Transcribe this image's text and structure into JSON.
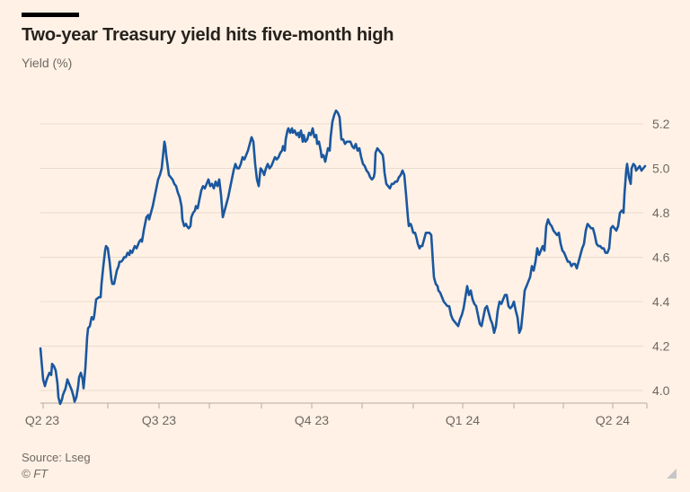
{
  "header": {
    "title": "Two-year Treasury yield hits five-month high",
    "subtitle": "Yield (%)"
  },
  "footer": {
    "source": "Source: Lseg",
    "copyright": "© FT"
  },
  "colors": {
    "background": "#FFF1E5",
    "accent_line": "#1A579F",
    "grid": "#E9DCCD",
    "axis": "#B5ACA2",
    "text_muted": "#6E6862",
    "title_text": "#26211D",
    "headline_bar": "#000000",
    "resize_handle": "#C6C6C6"
  },
  "chart_data": {
    "type": "line",
    "title": "Two-year Treasury yield hits five-month high",
    "ylabel": "Yield (%)",
    "series_name": "Two-year US Treasury yield",
    "ylim": [
      3.9,
      5.3
    ],
    "y_ticks": [
      5.2,
      5.0,
      4.8,
      4.6,
      4.4,
      4.2,
      4.0
    ],
    "x_tick_labels": [
      "Q2 23",
      "Q3 23",
      "Q4 23",
      "Q1 24",
      "Q2 24"
    ],
    "grid": "horizontal-only",
    "legend": "none",
    "x_unit_note": "x is horizontal plot position in px; date ≈ 2023-04-01 + (x-11)/1.832 days (axis spans ~19 Apr 2023 to ~21 Apr 2024, monthly ticks, quarterly labels)",
    "x_calibration": {
      "2023-07-01": 179,
      "2023-10-01": 347,
      "2024-01-01": 515,
      "2024-04-01": 682
    },
    "points": [
      [
        45,
        4.19
      ],
      [
        48,
        4.05
      ],
      [
        50,
        4.02
      ],
      [
        52,
        4.05
      ],
      [
        55,
        4.08
      ],
      [
        57,
        4.07
      ],
      [
        58,
        4.12
      ],
      [
        60,
        4.11
      ],
      [
        62,
        4.09
      ],
      [
        64,
        4.03
      ],
      [
        65,
        3.97
      ],
      [
        67,
        3.94
      ],
      [
        69,
        3.96
      ],
      [
        70,
        3.98
      ],
      [
        72,
        4.0
      ],
      [
        73,
        4.01
      ],
      [
        75,
        4.05
      ],
      [
        77,
        4.03
      ],
      [
        79,
        4.01
      ],
      [
        80,
        4.0
      ],
      [
        82,
        3.97
      ],
      [
        83,
        3.95
      ],
      [
        85,
        3.97
      ],
      [
        87,
        4.02
      ],
      [
        88,
        4.06
      ],
      [
        90,
        4.08
      ],
      [
        92,
        4.05
      ],
      [
        93,
        4.01
      ],
      [
        95,
        4.1
      ],
      [
        97,
        4.24
      ],
      [
        98,
        4.28
      ],
      [
        100,
        4.29
      ],
      [
        102,
        4.33
      ],
      [
        104,
        4.32
      ],
      [
        105,
        4.34
      ],
      [
        107,
        4.41
      ],
      [
        110,
        4.42
      ],
      [
        112,
        4.42
      ],
      [
        113,
        4.48
      ],
      [
        115,
        4.56
      ],
      [
        117,
        4.63
      ],
      [
        118,
        4.65
      ],
      [
        120,
        4.64
      ],
      [
        122,
        4.58
      ],
      [
        124,
        4.5
      ],
      [
        125,
        4.48
      ],
      [
        127,
        4.48
      ],
      [
        128,
        4.5
      ],
      [
        130,
        4.54
      ],
      [
        132,
        4.56
      ],
      [
        133,
        4.58
      ],
      [
        135,
        4.58
      ],
      [
        137,
        4.59
      ],
      [
        138,
        4.6
      ],
      [
        140,
        4.6
      ],
      [
        142,
        4.62
      ],
      [
        144,
        4.61
      ],
      [
        145,
        4.63
      ],
      [
        147,
        4.62
      ],
      [
        148,
        4.63
      ],
      [
        150,
        4.65
      ],
      [
        152,
        4.64
      ],
      [
        153,
        4.65
      ],
      [
        155,
        4.67
      ],
      [
        157,
        4.68
      ],
      [
        158,
        4.67
      ],
      [
        160,
        4.72
      ],
      [
        162,
        4.76
      ],
      [
        163,
        4.78
      ],
      [
        165,
        4.79
      ],
      [
        166,
        4.77
      ],
      [
        168,
        4.8
      ],
      [
        170,
        4.83
      ],
      [
        172,
        4.87
      ],
      [
        174,
        4.91
      ],
      [
        176,
        4.95
      ],
      [
        178,
        4.97
      ],
      [
        180,
        5.0
      ],
      [
        183,
        5.12
      ],
      [
        184,
        5.1
      ],
      [
        185,
        5.06
      ],
      [
        187,
        5.0
      ],
      [
        188,
        4.97
      ],
      [
        190,
        4.96
      ],
      [
        192,
        4.95
      ],
      [
        194,
        4.93
      ],
      [
        196,
        4.92
      ],
      [
        198,
        4.89
      ],
      [
        200,
        4.87
      ],
      [
        202,
        4.83
      ],
      [
        203,
        4.77
      ],
      [
        205,
        4.74
      ],
      [
        207,
        4.75
      ],
      [
        208,
        4.74
      ],
      [
        210,
        4.73
      ],
      [
        212,
        4.74
      ],
      [
        213,
        4.78
      ],
      [
        215,
        4.8
      ],
      [
        217,
        4.81
      ],
      [
        218,
        4.83
      ],
      [
        220,
        4.82
      ],
      [
        222,
        4.86
      ],
      [
        224,
        4.9
      ],
      [
        226,
        4.92
      ],
      [
        228,
        4.91
      ],
      [
        230,
        4.93
      ],
      [
        232,
        4.95
      ],
      [
        234,
        4.92
      ],
      [
        236,
        4.93
      ],
      [
        238,
        4.91
      ],
      [
        240,
        4.94
      ],
      [
        242,
        4.92
      ],
      [
        244,
        4.95
      ],
      [
        246,
        4.88
      ],
      [
        248,
        4.78
      ],
      [
        250,
        4.81
      ],
      [
        252,
        4.84
      ],
      [
        254,
        4.87
      ],
      [
        256,
        4.91
      ],
      [
        258,
        4.95
      ],
      [
        260,
        4.99
      ],
      [
        262,
        5.02
      ],
      [
        264,
        5.0
      ],
      [
        266,
        5.0
      ],
      [
        268,
        5.02
      ],
      [
        270,
        5.05
      ],
      [
        272,
        5.04
      ],
      [
        274,
        5.06
      ],
      [
        276,
        5.08
      ],
      [
        278,
        5.11
      ],
      [
        280,
        5.14
      ],
      [
        282,
        5.12
      ],
      [
        284,
        5.02
      ],
      [
        286,
        4.95
      ],
      [
        288,
        4.92
      ],
      [
        290,
        5.0
      ],
      [
        292,
        4.99
      ],
      [
        294,
        4.97
      ],
      [
        296,
        5.0
      ],
      [
        298,
        5.02
      ],
      [
        300,
        5.0
      ],
      [
        302,
        5.01
      ],
      [
        304,
        5.03
      ],
      [
        306,
        5.05
      ],
      [
        308,
        5.04
      ],
      [
        310,
        5.05
      ],
      [
        312,
        5.07
      ],
      [
        314,
        5.08
      ],
      [
        315,
        5.1
      ],
      [
        317,
        5.08
      ],
      [
        318,
        5.13
      ],
      [
        320,
        5.17
      ],
      [
        321,
        5.18
      ],
      [
        323,
        5.16
      ],
      [
        325,
        5.18
      ],
      [
        326,
        5.16
      ],
      [
        328,
        5.17
      ],
      [
        330,
        5.15
      ],
      [
        332,
        5.16
      ],
      [
        333,
        5.14
      ],
      [
        335,
        5.17
      ],
      [
        337,
        5.12
      ],
      [
        338,
        5.15
      ],
      [
        340,
        5.12
      ],
      [
        342,
        5.13
      ],
      [
        344,
        5.16
      ],
      [
        346,
        5.15
      ],
      [
        348,
        5.18
      ],
      [
        350,
        5.14
      ],
      [
        352,
        5.15
      ],
      [
        353,
        5.11
      ],
      [
        355,
        5.12
      ],
      [
        357,
        5.08
      ],
      [
        358,
        5.05
      ],
      [
        360,
        5.06
      ],
      [
        362,
        5.03
      ],
      [
        363,
        5.05
      ],
      [
        365,
        5.09
      ],
      [
        367,
        5.08
      ],
      [
        368,
        5.14
      ],
      [
        370,
        5.21
      ],
      [
        372,
        5.24
      ],
      [
        374,
        5.26
      ],
      [
        376,
        5.25
      ],
      [
        378,
        5.23
      ],
      [
        380,
        5.13
      ],
      [
        382,
        5.13
      ],
      [
        384,
        5.11
      ],
      [
        386,
        5.12
      ],
      [
        388,
        5.12
      ],
      [
        390,
        5.12
      ],
      [
        392,
        5.1
      ],
      [
        394,
        5.09
      ],
      [
        396,
        5.11
      ],
      [
        398,
        5.08
      ],
      [
        400,
        5.09
      ],
      [
        402,
        5.05
      ],
      [
        404,
        5.02
      ],
      [
        406,
        5.01
      ],
      [
        408,
        4.99
      ],
      [
        410,
        4.98
      ],
      [
        412,
        4.96
      ],
      [
        414,
        4.95
      ],
      [
        416,
        4.96
      ],
      [
        417,
        4.98
      ],
      [
        418,
        5.07
      ],
      [
        420,
        5.09
      ],
      [
        422,
        5.08
      ],
      [
        424,
        5.07
      ],
      [
        426,
        5.06
      ],
      [
        427,
        5.03
      ],
      [
        428,
        4.98
      ],
      [
        430,
        4.93
      ],
      [
        432,
        4.92
      ],
      [
        434,
        4.91
      ],
      [
        436,
        4.93
      ],
      [
        438,
        4.93
      ],
      [
        440,
        4.94
      ],
      [
        442,
        4.94
      ],
      [
        444,
        4.96
      ],
      [
        446,
        4.97
      ],
      [
        448,
        4.99
      ],
      [
        450,
        4.97
      ],
      [
        452,
        4.88
      ],
      [
        454,
        4.78
      ],
      [
        455,
        4.74
      ],
      [
        457,
        4.75
      ],
      [
        458,
        4.74
      ],
      [
        460,
        4.71
      ],
      [
        462,
        4.71
      ],
      [
        464,
        4.68
      ],
      [
        465,
        4.66
      ],
      [
        467,
        4.64
      ],
      [
        468,
        4.65
      ],
      [
        470,
        4.65
      ],
      [
        472,
        4.68
      ],
      [
        474,
        4.71
      ],
      [
        476,
        4.71
      ],
      [
        478,
        4.71
      ],
      [
        480,
        4.7
      ],
      [
        482,
        4.57
      ],
      [
        483,
        4.51
      ],
      [
        485,
        4.48
      ],
      [
        487,
        4.47
      ],
      [
        488,
        4.45
      ],
      [
        490,
        4.44
      ],
      [
        492,
        4.42
      ],
      [
        494,
        4.4
      ],
      [
        496,
        4.39
      ],
      [
        498,
        4.38
      ],
      [
        500,
        4.38
      ],
      [
        502,
        4.34
      ],
      [
        504,
        4.32
      ],
      [
        506,
        4.31
      ],
      [
        508,
        4.3
      ],
      [
        510,
        4.29
      ],
      [
        512,
        4.32
      ],
      [
        514,
        4.34
      ],
      [
        516,
        4.37
      ],
      [
        518,
        4.42
      ],
      [
        520,
        4.47
      ],
      [
        522,
        4.43
      ],
      [
        524,
        4.45
      ],
      [
        526,
        4.41
      ],
      [
        528,
        4.39
      ],
      [
        530,
        4.38
      ],
      [
        532,
        4.34
      ],
      [
        534,
        4.3
      ],
      [
        536,
        4.29
      ],
      [
        538,
        4.33
      ],
      [
        540,
        4.37
      ],
      [
        542,
        4.38
      ],
      [
        544,
        4.35
      ],
      [
        546,
        4.32
      ],
      [
        548,
        4.3
      ],
      [
        550,
        4.26
      ],
      [
        552,
        4.29
      ],
      [
        554,
        4.36
      ],
      [
        556,
        4.4
      ],
      [
        558,
        4.39
      ],
      [
        560,
        4.41
      ],
      [
        562,
        4.43
      ],
      [
        564,
        4.43
      ],
      [
        566,
        4.38
      ],
      [
        568,
        4.37
      ],
      [
        570,
        4.38
      ],
      [
        572,
        4.4
      ],
      [
        574,
        4.36
      ],
      [
        576,
        4.33
      ],
      [
        578,
        4.26
      ],
      [
        580,
        4.28
      ],
      [
        582,
        4.36
      ],
      [
        584,
        4.45
      ],
      [
        586,
        4.47
      ],
      [
        588,
        4.49
      ],
      [
        590,
        4.51
      ],
      [
        592,
        4.56
      ],
      [
        594,
        4.54
      ],
      [
        596,
        4.58
      ],
      [
        598,
        4.64
      ],
      [
        600,
        4.61
      ],
      [
        602,
        4.63
      ],
      [
        604,
        4.65
      ],
      [
        606,
        4.63
      ],
      [
        608,
        4.74
      ],
      [
        610,
        4.77
      ],
      [
        612,
        4.75
      ],
      [
        614,
        4.74
      ],
      [
        616,
        4.72
      ],
      [
        618,
        4.71
      ],
      [
        620,
        4.7
      ],
      [
        622,
        4.71
      ],
      [
        624,
        4.66
      ],
      [
        626,
        4.63
      ],
      [
        628,
        4.62
      ],
      [
        630,
        4.6
      ],
      [
        632,
        4.58
      ],
      [
        634,
        4.58
      ],
      [
        636,
        4.56
      ],
      [
        638,
        4.57
      ],
      [
        640,
        4.57
      ],
      [
        642,
        4.55
      ],
      [
        644,
        4.58
      ],
      [
        646,
        4.61
      ],
      [
        648,
        4.64
      ],
      [
        650,
        4.66
      ],
      [
        652,
        4.72
      ],
      [
        654,
        4.75
      ],
      [
        656,
        4.74
      ],
      [
        658,
        4.73
      ],
      [
        660,
        4.73
      ],
      [
        662,
        4.7
      ],
      [
        664,
        4.66
      ],
      [
        666,
        4.65
      ],
      [
        668,
        4.65
      ],
      [
        670,
        4.64
      ],
      [
        672,
        4.64
      ],
      [
        674,
        4.62
      ],
      [
        676,
        4.62
      ],
      [
        678,
        4.64
      ],
      [
        680,
        4.73
      ],
      [
        682,
        4.74
      ],
      [
        684,
        4.73
      ],
      [
        686,
        4.72
      ],
      [
        688,
        4.74
      ],
      [
        690,
        4.8
      ],
      [
        692,
        4.81
      ],
      [
        694,
        4.8
      ],
      [
        695,
        4.88
      ],
      [
        697,
        4.99
      ],
      [
        698,
        5.02
      ],
      [
        700,
        4.96
      ],
      [
        702,
        4.93
      ],
      [
        703,
        5.0
      ],
      [
        705,
        5.02
      ],
      [
        707,
        5.01
      ],
      [
        708,
        4.99
      ],
      [
        710,
        5.0
      ],
      [
        712,
        5.01
      ],
      [
        714,
        4.99
      ],
      [
        716,
        5.0
      ],
      [
        718,
        5.01
      ]
    ]
  }
}
